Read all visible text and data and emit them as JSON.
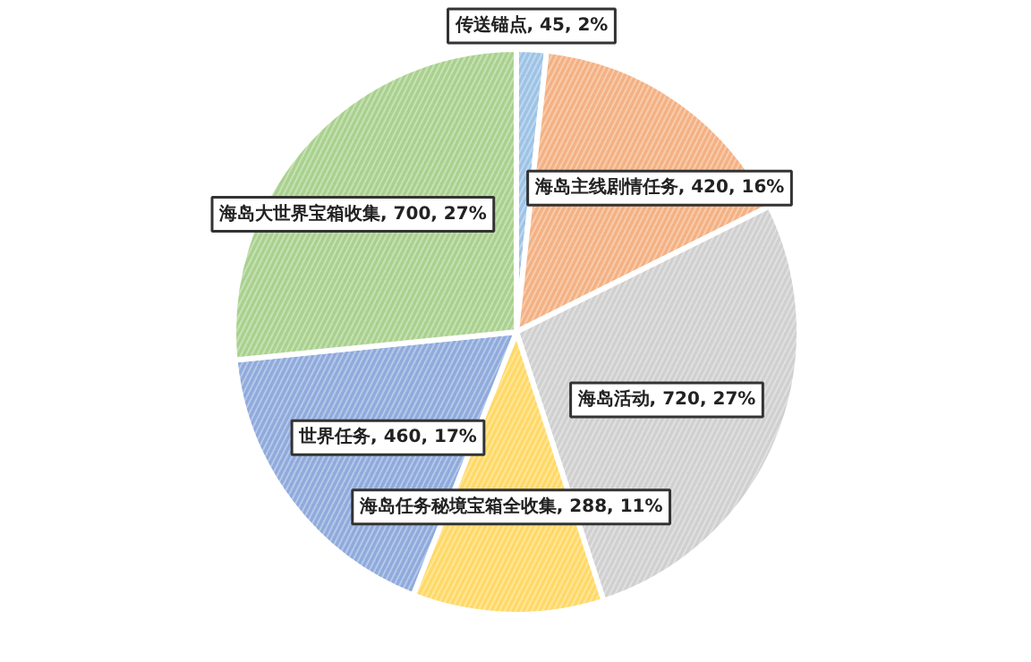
{
  "chart_data": {
    "type": "pie",
    "categories": [
      "传送锚点",
      "海岛主线剧情任务",
      "海岛活动",
      "海岛任务秘境宝箱全收集",
      "世界任务",
      "海岛大世界宝箱收集"
    ],
    "values": [
      45,
      420,
      720,
      288,
      460,
      700
    ],
    "colors": [
      "#9dc3e6",
      "#f4b183",
      "#d0d0d0",
      "#ffd966",
      "#8faadc",
      "#a9d18e"
    ],
    "value_labels": [
      "45, 2%",
      "420, 16%",
      "720, 27%",
      "288, 11%",
      "460, 17%",
      "700, 27%"
    ]
  }
}
